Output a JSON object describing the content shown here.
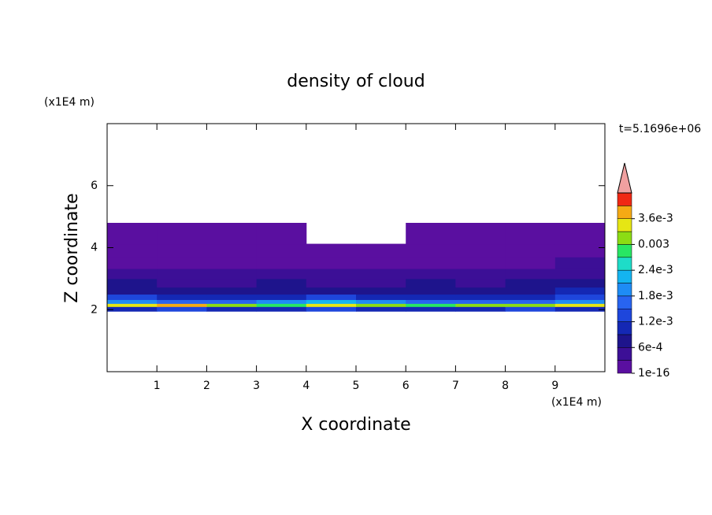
{
  "chart_data": {
    "type": "contour",
    "title": "density of cloud",
    "xlabel": "X coordinate",
    "ylabel": "Z coordinate",
    "xunit": "(x1E4 m)",
    "yunit": "(x1E4 m)",
    "time_label": "t=5.1696e+06",
    "xlim": [
      0,
      10
    ],
    "ylim": [
      0,
      8
    ],
    "xticks": [
      1,
      2,
      3,
      4,
      5,
      6,
      7,
      8,
      9
    ],
    "yticks": [
      2,
      4,
      6
    ],
    "x": [
      0.5,
      1.5,
      2.5,
      3.5,
      4.5,
      5.5,
      6.5,
      7.5,
      8.5,
      9.5
    ],
    "z": [
      2.05,
      2.15,
      2.25,
      2.4,
      2.6,
      2.85,
      3.15,
      3.5,
      3.9,
      4.35
    ],
    "density": [
      [
        0.0011,
        0.0012,
        0.0011,
        0.001,
        0.0012,
        0.0011,
        0.001,
        0.0011,
        0.0012,
        0.0011
      ],
      [
        0.0034,
        0.0038,
        0.003,
        0.0028,
        0.0033,
        0.0031,
        0.0027,
        0.003,
        0.0032,
        0.0035
      ],
      [
        0.0019,
        0.0017,
        0.0016,
        0.0018,
        0.0022,
        0.002,
        0.0015,
        0.0017,
        0.0016,
        0.0019
      ],
      [
        0.0012,
        0.001,
        0.0009,
        0.0011,
        0.0012,
        0.001,
        0.0009,
        0.001,
        0.0011,
        0.0013
      ],
      [
        0.0008,
        0.0007,
        0.0007,
        0.0008,
        0.0007,
        0.0008,
        0.0007,
        0.0006,
        0.0008,
        0.0009
      ],
      [
        0.0006,
        0.0005,
        0.0005,
        0.0006,
        0.0005,
        0.0005,
        0.0006,
        0.0005,
        0.0006,
        0.0007
      ],
      [
        0.0004,
        0.0003,
        0.0004,
        0.0003,
        0.0004,
        0.0004,
        0.0003,
        0.0004,
        0.0004,
        0.0005
      ],
      [
        0.0002,
        0.0002,
        0.0001,
        0.0002,
        0.0002,
        0.0002,
        0.0001,
        0.0002,
        0.0002,
        0.0003
      ],
      [
        0.0001,
        0.0001,
        0.0001,
        0.0001,
        0.0001,
        0.0001,
        0.0001,
        0.0001,
        0.0001,
        0.0002
      ],
      [
        5e-05,
        5e-05,
        5e-05,
        5e-05,
        null,
        null,
        5e-05,
        5e-05,
        5e-05,
        5e-05
      ]
    ],
    "levels": [
      1e-16,
      0.0003,
      0.0006,
      0.0009,
      0.0012,
      0.0015,
      0.0018,
      0.0021,
      0.0024,
      0.0027,
      0.003,
      0.0033,
      0.0036,
      0.0039,
      0.0042
    ],
    "colors": [
      "#5a0fa0",
      "#3c0f96",
      "#1e148c",
      "#1428b4",
      "#1e46dc",
      "#2864f0",
      "#1e8cf5",
      "#14b4f0",
      "#1edcc8",
      "#28e664",
      "#8cdc14",
      "#e6e614",
      "#f5aa14",
      "#f02814"
    ],
    "extend_color": "#f0a0a0",
    "cbar_ticks": [
      1e-16,
      {
        "value": 0.0006,
        "label": "6e-4"
      },
      {
        "value": 0.0012,
        "label": "1.2e-3"
      },
      {
        "value": 0.0018,
        "label": "1.8e-3"
      },
      {
        "value": 0.0024,
        "label": "2.4e-3"
      },
      0.003,
      {
        "value": 0.0036,
        "label": "3.6e-3"
      }
    ]
  }
}
